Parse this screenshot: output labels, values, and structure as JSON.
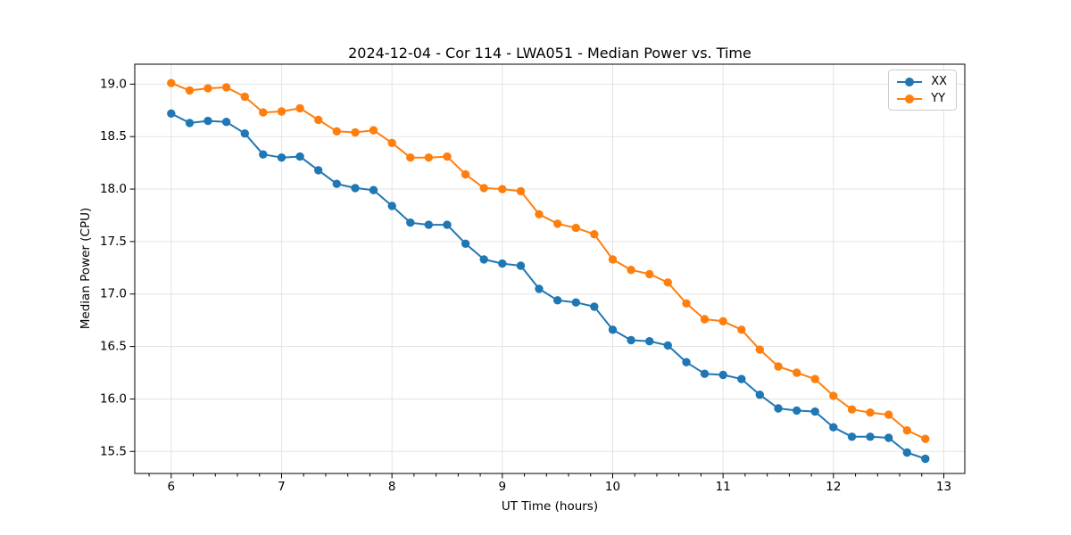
{
  "figure": {
    "background": "#ffffff"
  },
  "chart_data": {
    "type": "line",
    "title": "2024-12-04 - Cor 114 - LWA051 - Median Power vs. Time",
    "xlabel": "UT Time (hours)",
    "ylabel": "Median Power (CPU)",
    "x": [
      6.0,
      6.167,
      6.333,
      6.5,
      6.667,
      6.833,
      7.0,
      7.167,
      7.333,
      7.5,
      7.667,
      7.833,
      8.0,
      8.167,
      8.333,
      8.5,
      8.667,
      8.833,
      9.0,
      9.167,
      9.333,
      9.5,
      9.667,
      9.833,
      10.0,
      10.167,
      10.333,
      10.5,
      10.667,
      10.833,
      11.0,
      11.167,
      11.333,
      11.5,
      11.667,
      11.833,
      12.0,
      12.167,
      12.333,
      12.5,
      12.667,
      12.833
    ],
    "series": [
      {
        "name": "XX",
        "color": "#1f77b4",
        "values": [
          18.72,
          18.63,
          18.65,
          18.64,
          18.53,
          18.33,
          18.3,
          18.31,
          18.18,
          18.05,
          18.01,
          17.99,
          17.84,
          17.68,
          17.66,
          17.66,
          17.48,
          17.33,
          17.29,
          17.27,
          17.05,
          16.94,
          16.92,
          16.88,
          16.66,
          16.56,
          16.55,
          16.51,
          16.35,
          16.24,
          16.23,
          16.19,
          16.04,
          15.91,
          15.89,
          15.88,
          15.73,
          15.64,
          15.64,
          15.63,
          15.49,
          15.43
        ]
      },
      {
        "name": "YY",
        "color": "#ff7f0e",
        "values": [
          19.01,
          18.94,
          18.96,
          18.97,
          18.88,
          18.73,
          18.74,
          18.77,
          18.66,
          18.55,
          18.54,
          18.56,
          18.44,
          18.3,
          18.3,
          18.31,
          18.14,
          18.01,
          18.0,
          17.98,
          17.76,
          17.67,
          17.63,
          17.57,
          17.33,
          17.23,
          17.19,
          17.11,
          16.91,
          16.76,
          16.74,
          16.66,
          16.47,
          16.31,
          16.25,
          16.19,
          16.03,
          15.9,
          15.87,
          15.85,
          15.7,
          15.62
        ]
      }
    ],
    "xlim": [
      5.67,
      13.19
    ],
    "ylim": [
      15.29,
      19.19
    ],
    "xtick_values": [
      6,
      7,
      8,
      9,
      10,
      11,
      12,
      13
    ],
    "xtick_labels": [
      "6",
      "7",
      "8",
      "9",
      "10",
      "11",
      "12",
      "13"
    ],
    "x_minor_tick_step": 0.2,
    "ytick_values": [
      15.5,
      16.0,
      16.5,
      17.0,
      17.5,
      18.0,
      18.5,
      19.0
    ],
    "ytick_labels": [
      "15.5",
      "16.0",
      "16.5",
      "17.0",
      "17.5",
      "18.0",
      "18.5",
      "19.0"
    ],
    "grid": true,
    "grid_color": "#e3e3e3",
    "axis_color": "#000000",
    "legend": {
      "position": "upper-right",
      "entries": [
        "XX",
        "YY"
      ]
    },
    "marker": "circle"
  }
}
